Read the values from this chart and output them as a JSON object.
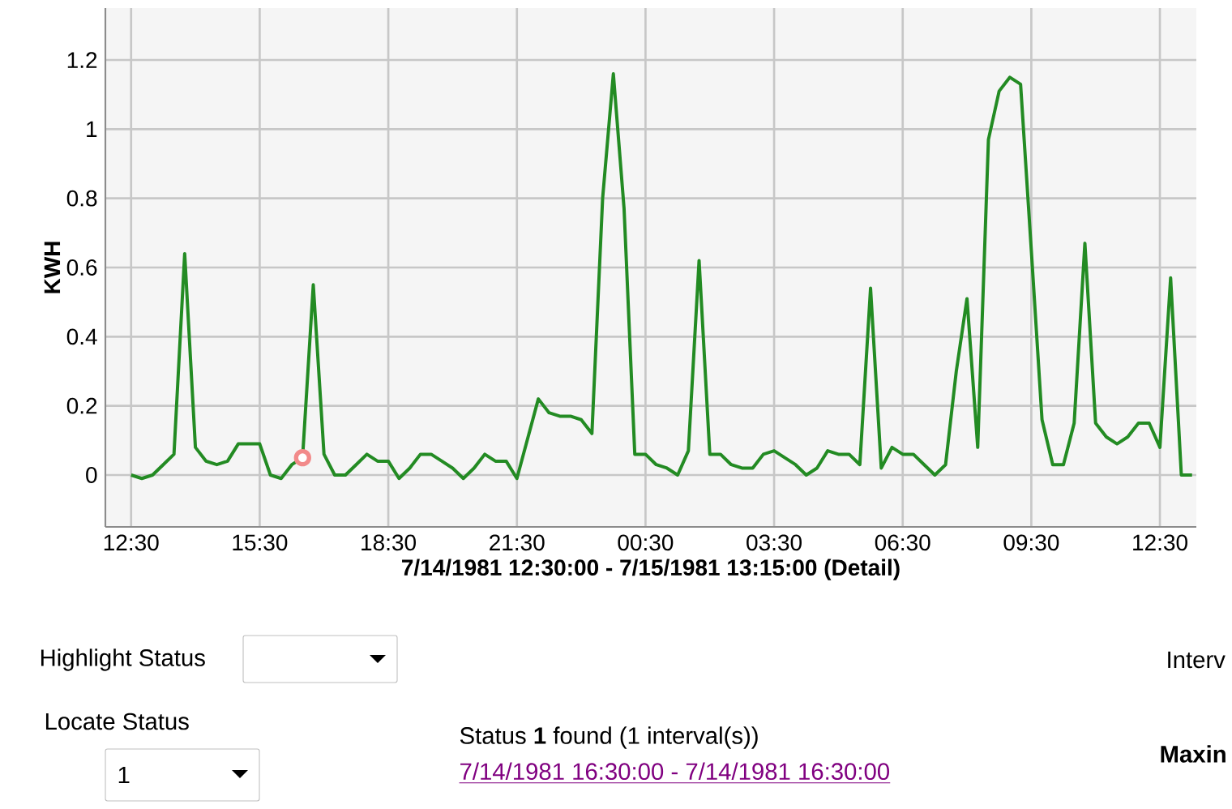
{
  "chart_data": {
    "type": "line",
    "xlabel": "7/14/1981 12:30:00 - 7/15/1981 13:15:00 (Detail)",
    "ylabel": "KWH",
    "xlim": [
      "1981-07-14T11:54",
      "1981-07-15T13:21"
    ],
    "ylim": [
      -0.15,
      1.35
    ],
    "xticks": [
      {
        "value": "1981-07-14T12:30",
        "label": "12:30"
      },
      {
        "value": "1981-07-14T15:30",
        "label": "15:30"
      },
      {
        "value": "1981-07-14T18:30",
        "label": "18:30"
      },
      {
        "value": "1981-07-14T21:30",
        "label": "21:30"
      },
      {
        "value": "1981-07-15T00:30",
        "label": "00:30"
      },
      {
        "value": "1981-07-15T03:30",
        "label": "03:30"
      },
      {
        "value": "1981-07-15T06:30",
        "label": "06:30"
      },
      {
        "value": "1981-07-15T09:30",
        "label": "09:30"
      },
      {
        "value": "1981-07-15T12:30",
        "label": "12:30"
      }
    ],
    "yticks": [
      0,
      0.2,
      0.4,
      0.6,
      0.8,
      1,
      1.2
    ],
    "grid": true,
    "series": [
      {
        "type": "line",
        "color": "#238b23",
        "x": [
          "1981-07-14T12:30",
          "1981-07-14T12:45",
          "1981-07-14T13:00",
          "1981-07-14T13:15",
          "1981-07-14T13:30",
          "1981-07-14T13:45",
          "1981-07-14T14:00",
          "1981-07-14T14:15",
          "1981-07-14T14:30",
          "1981-07-14T14:45",
          "1981-07-14T15:00",
          "1981-07-14T15:15",
          "1981-07-14T15:30",
          "1981-07-14T15:45",
          "1981-07-14T16:00",
          "1981-07-14T16:15",
          "1981-07-14T16:30",
          "1981-07-14T16:45",
          "1981-07-14T17:00",
          "1981-07-14T17:15",
          "1981-07-14T17:30",
          "1981-07-14T17:45",
          "1981-07-14T18:00",
          "1981-07-14T18:15",
          "1981-07-14T18:30",
          "1981-07-14T18:45",
          "1981-07-14T19:00",
          "1981-07-14T19:15",
          "1981-07-14T19:30",
          "1981-07-14T19:45",
          "1981-07-14T20:00",
          "1981-07-14T20:15",
          "1981-07-14T20:30",
          "1981-07-14T20:45",
          "1981-07-14T21:00",
          "1981-07-14T21:15",
          "1981-07-14T21:30",
          "1981-07-14T22:00",
          "1981-07-14T22:15",
          "1981-07-14T22:30",
          "1981-07-14T22:45",
          "1981-07-14T23:00",
          "1981-07-14T23:15",
          "1981-07-14T23:30",
          "1981-07-14T23:45",
          "1981-07-15T00:00",
          "1981-07-15T00:15",
          "1981-07-15T00:30",
          "1981-07-15T00:45",
          "1981-07-15T01:00",
          "1981-07-15T01:15",
          "1981-07-15T01:30",
          "1981-07-15T01:45",
          "1981-07-15T02:00",
          "1981-07-15T02:15",
          "1981-07-15T02:30",
          "1981-07-15T02:45",
          "1981-07-15T03:00",
          "1981-07-15T03:15",
          "1981-07-15T03:30",
          "1981-07-15T03:45",
          "1981-07-15T04:00",
          "1981-07-15T04:15",
          "1981-07-15T04:30",
          "1981-07-15T04:45",
          "1981-07-15T05:00",
          "1981-07-15T05:15",
          "1981-07-15T05:30",
          "1981-07-15T05:45",
          "1981-07-15T06:00",
          "1981-07-15T06:15",
          "1981-07-15T06:30",
          "1981-07-15T06:45",
          "1981-07-15T07:00",
          "1981-07-15T07:15",
          "1981-07-15T07:30",
          "1981-07-15T07:45",
          "1981-07-15T08:00",
          "1981-07-15T08:15",
          "1981-07-15T08:30",
          "1981-07-15T08:45",
          "1981-07-15T09:00",
          "1981-07-15T09:15",
          "1981-07-15T09:30",
          "1981-07-15T09:45",
          "1981-07-15T10:00",
          "1981-07-15T10:15",
          "1981-07-15T10:30",
          "1981-07-15T10:45",
          "1981-07-15T11:00",
          "1981-07-15T11:15",
          "1981-07-15T11:30",
          "1981-07-15T11:45",
          "1981-07-15T12:00",
          "1981-07-15T12:15",
          "1981-07-15T12:30",
          "1981-07-15T12:45",
          "1981-07-15T13:00",
          "1981-07-15T13:15"
        ],
        "values": [
          0,
          -0.01,
          0,
          0.03,
          0.06,
          0.64,
          0.08,
          0.04,
          0.03,
          0.04,
          0.09,
          0.09,
          0.09,
          0,
          -0.01,
          0.03,
          0.05,
          0.55,
          0.06,
          0,
          0,
          0.03,
          0.06,
          0.04,
          0.04,
          -0.01,
          0.02,
          0.06,
          0.06,
          0.04,
          0.02,
          -0.01,
          0.02,
          0.06,
          0.04,
          0.04,
          -0.01,
          0.22,
          0.18,
          0.17,
          0.17,
          0.16,
          0.12,
          0.8,
          1.16,
          0.77,
          0.06,
          0.06,
          0.03,
          0.02,
          0,
          0.07,
          0.62,
          0.06,
          0.06,
          0.03,
          0.02,
          0.02,
          0.06,
          0.07,
          0.05,
          0.03,
          0,
          0.02,
          0.07,
          0.06,
          0.06,
          0.03,
          0.54,
          0.02,
          0.08,
          0.06,
          0.06,
          0.03,
          0,
          0.03,
          0.3,
          0.51,
          0.08,
          0.97,
          1.11,
          1.15,
          1.13,
          0.65,
          0.16,
          0.03,
          0.03,
          0.15,
          0.67,
          0.15,
          0.11,
          0.09,
          0.11,
          0.15,
          0.15,
          0.08,
          0.57,
          0,
          0
        ]
      },
      {
        "type": "scatter",
        "color": "#f28a8a",
        "marker": "circle",
        "x": [
          "1981-07-14T16:30"
        ],
        "values": [
          0.05
        ]
      }
    ],
    "annotations": [
      "Highlight Status",
      "Interv",
      "Locate Status",
      "1",
      "Status **1** found (1 interval(s))",
      "7/14/1981 16:30:00 - 7/14/1981 16:30:00",
      "Maxin"
    ]
  }
}
